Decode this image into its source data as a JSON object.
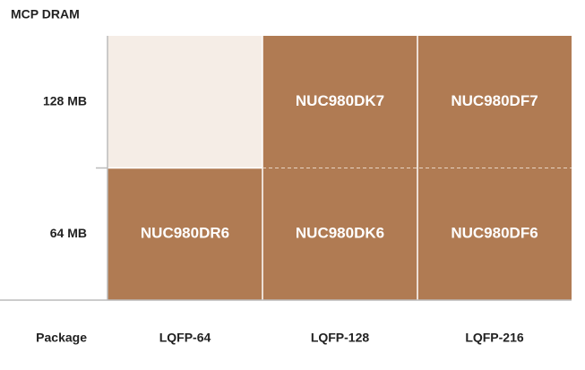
{
  "y_axis": {
    "title": "MCP DRAM"
  },
  "x_axis": {
    "title": "Package",
    "columns": [
      "LQFP-64",
      "LQFP-128",
      "LQFP-216"
    ]
  },
  "rows": [
    {
      "label": "128 MB",
      "cells": [
        null,
        "NUC980DK7",
        "NUC980DF7"
      ]
    },
    {
      "label": "64 MB",
      "cells": [
        "NUC980DR6",
        "NUC980DK6",
        "NUC980DF6"
      ]
    }
  ]
}
